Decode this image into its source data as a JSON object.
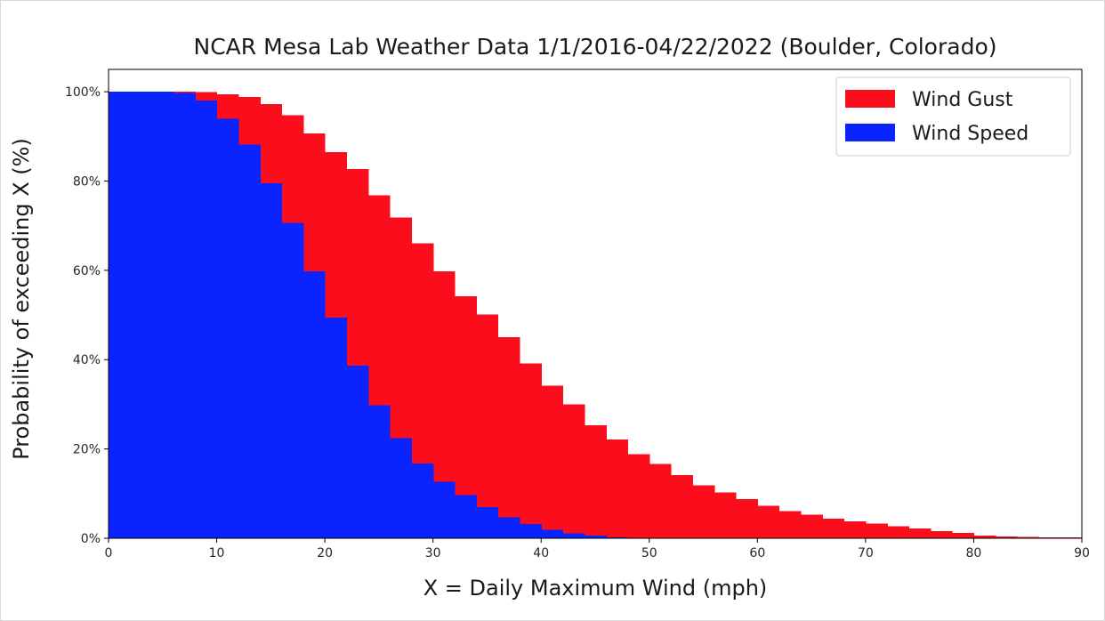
{
  "chart_data": {
    "type": "area",
    "subtype": "step",
    "title": "NCAR Mesa Lab Weather Data 1/1/2016-04/22/2022 (Boulder, Colorado)",
    "xlabel": "X = Daily Maximum Wind (mph)",
    "ylabel": "Probability of exceeding X (%)",
    "xlim": [
      0,
      90
    ],
    "ylim": [
      0,
      105
    ],
    "x_ticks": [
      0,
      10,
      20,
      30,
      40,
      50,
      60,
      70,
      80,
      90
    ],
    "x_tick_labels": [
      "0",
      "10",
      "20",
      "30",
      "40",
      "50",
      "60",
      "70",
      "80",
      "90"
    ],
    "y_ticks": [
      0,
      20,
      40,
      60,
      80,
      100
    ],
    "y_tick_labels": [
      "0%",
      "20%",
      "40%",
      "60%",
      "80%",
      "100%"
    ],
    "grid": false,
    "legend_position": "top-right",
    "bin_edges": [
      0,
      2,
      4,
      6,
      8,
      10,
      12,
      14,
      16,
      18,
      20,
      22,
      24,
      26,
      28,
      30,
      32,
      34,
      36,
      38,
      40,
      42,
      44,
      46,
      48,
      50,
      52,
      54,
      56,
      58,
      60,
      62,
      64,
      66,
      68,
      70,
      72,
      74,
      76,
      78,
      80,
      82,
      84,
      86,
      88,
      90
    ],
    "series": [
      {
        "name": "Wind Gust",
        "color": "#fc0d1b",
        "values": [
          100,
          100,
          100,
          100,
          99.9,
          99.4,
          98.8,
          97.2,
          94.7,
          90.7,
          86.5,
          82.7,
          76.8,
          71.8,
          66.0,
          59.8,
          54.2,
          50.1,
          45.0,
          39.2,
          34.2,
          30.0,
          25.3,
          22.1,
          18.8,
          16.6,
          14.1,
          11.9,
          10.3,
          8.8,
          7.3,
          6.1,
          5.3,
          4.4,
          3.8,
          3.3,
          2.7,
          2.2,
          1.6,
          1.2,
          0.6,
          0.4,
          0.3,
          0.2,
          0.2
        ]
      },
      {
        "name": "Wind Speed",
        "color": "#0a24ff",
        "values": [
          100,
          100,
          100,
          99.7,
          98.0,
          93.9,
          88.2,
          79.5,
          70.6,
          59.8,
          49.4,
          38.7,
          29.8,
          22.4,
          16.7,
          12.7,
          9.7,
          7.0,
          4.7,
          3.2,
          1.9,
          1.1,
          0.6,
          0.2,
          0.1,
          0,
          0,
          0,
          0,
          0,
          0,
          0,
          0,
          0,
          0,
          0,
          0,
          0,
          0,
          0,
          0,
          0,
          0,
          0,
          0
        ]
      }
    ]
  }
}
